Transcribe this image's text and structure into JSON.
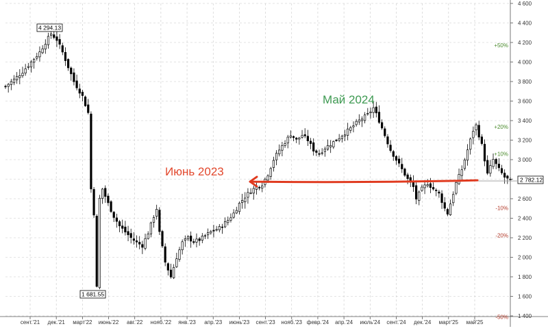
{
  "chart_data": {
    "type": "candlestick",
    "title": "",
    "xlabel": "",
    "ylabel": "",
    "ylim": [
      1400,
      4600
    ],
    "y_ticks": [
      1400,
      1600,
      1800,
      2000,
      2200,
      2400,
      2600,
      2800,
      3000,
      3200,
      3400,
      3600,
      3800,
      4000,
      4200,
      4400,
      4600
    ],
    "y_tick_labels": [
      "1 400",
      "1 600",
      "1 800",
      "2 000",
      "2 200",
      "2 400",
      "2 600",
      "2 800",
      "3 000",
      "3 200",
      "3 400",
      "3 600",
      "3 800",
      "4 000",
      "4 200",
      "4 400",
      "4 600"
    ],
    "x_tick_labels": [
      "сент.'21",
      "дек.'21",
      "март'22",
      "июнь'22",
      "авг.'22",
      "нояб.'22",
      "янв.'23",
      "апр.'23",
      "июнь'23",
      "сент.'23",
      "нояб.'23",
      "февр.'24",
      "апр.'24",
      "июль'24",
      "сент.'24",
      "дек.'24",
      "март'25",
      "май'25"
    ],
    "grid": true,
    "price_path": [
      [
        0,
        3750
      ],
      [
        3,
        3820
      ],
      [
        6,
        3900
      ],
      [
        9,
        4000
      ],
      [
        12,
        4100
      ],
      [
        14,
        4200
      ],
      [
        16,
        4290
      ],
      [
        18,
        4230
      ],
      [
        20,
        4100
      ],
      [
        22,
        3950
      ],
      [
        24,
        3800
      ],
      [
        27,
        3650
      ],
      [
        29,
        3480
      ],
      [
        30,
        2700
      ],
      [
        31,
        2450
      ],
      [
        32,
        1690
      ],
      [
        33,
        2600
      ],
      [
        34,
        2700
      ],
      [
        36,
        2550
      ],
      [
        38,
        2420
      ],
      [
        40,
        2320
      ],
      [
        42,
        2260
      ],
      [
        44,
        2200
      ],
      [
        46,
        2150
      ],
      [
        48,
        2120
      ],
      [
        50,
        2250
      ],
      [
        52,
        2420
      ],
      [
        53,
        2500
      ],
      [
        54,
        2250
      ],
      [
        56,
        1950
      ],
      [
        58,
        1800
      ],
      [
        60,
        2000
      ],
      [
        62,
        2150
      ],
      [
        64,
        2200
      ],
      [
        66,
        2160
      ],
      [
        68,
        2180
      ],
      [
        70,
        2220
      ],
      [
        72,
        2260
      ],
      [
        75,
        2300
      ],
      [
        78,
        2380
      ],
      [
        80,
        2450
      ],
      [
        82,
        2550
      ],
      [
        84,
        2620
      ],
      [
        86,
        2680
      ],
      [
        88,
        2720
      ],
      [
        90,
        2750
      ],
      [
        92,
        2850
      ],
      [
        94,
        3000
      ],
      [
        96,
        3100
      ],
      [
        98,
        3180
      ],
      [
        100,
        3260
      ],
      [
        102,
        3200
      ],
      [
        104,
        3250
      ],
      [
        106,
        3200
      ],
      [
        108,
        3100
      ],
      [
        110,
        3060
      ],
      [
        112,
        3120
      ],
      [
        115,
        3180
      ],
      [
        118,
        3250
      ],
      [
        121,
        3320
      ],
      [
        124,
        3400
      ],
      [
        127,
        3460
      ],
      [
        129,
        3530
      ],
      [
        131,
        3400
      ],
      [
        133,
        3250
      ],
      [
        135,
        3100
      ],
      [
        137,
        3000
      ],
      [
        139,
        2900
      ],
      [
        141,
        2800
      ],
      [
        143,
        2720
      ],
      [
        144,
        2600
      ],
      [
        146,
        2700
      ],
      [
        148,
        2760
      ],
      [
        150,
        2700
      ],
      [
        152,
        2650
      ],
      [
        154,
        2500
      ],
      [
        155,
        2450
      ],
      [
        156,
        2550
      ],
      [
        158,
        2760
      ],
      [
        160,
        2900
      ],
      [
        162,
        3100
      ],
      [
        164,
        3300
      ],
      [
        165,
        3350
      ],
      [
        167,
        3150
      ],
      [
        169,
        2850
      ],
      [
        171,
        3000
      ],
      [
        173,
        2900
      ],
      [
        175,
        2820
      ],
      [
        177,
        2782
      ]
    ],
    "labels": {
      "high_label": "4 294.13",
      "low_label": "1 681.55",
      "last_price_label": "2 782.12"
    },
    "percent_levels": [
      {
        "label": "+50%",
        "value": 4173,
        "color": "#4a8a2c"
      },
      {
        "label": "+20%",
        "value": 3338,
        "color": "#4a8a2c"
      },
      {
        "label": "+10%",
        "value": 3060,
        "color": "#4a8a2c"
      },
      {
        "label": "-10%",
        "value": 2504,
        "color": "#b23a2a"
      },
      {
        "label": "-20%",
        "value": 2226,
        "color": "#b23a2a"
      },
      {
        "label": "-50%",
        "value": 1391,
        "color": "#b23a2a"
      }
    ],
    "annotations": [
      {
        "text": "Июнь 2023",
        "color": "#e2482d"
      },
      {
        "text": "Май 2024",
        "color": "#3e9a52"
      }
    ],
    "arrow_level": 2782,
    "colors": {
      "candle": "#000000",
      "grid": "#c8c8c8",
      "axis": "#555555",
      "arrow": "#e03a1f",
      "last_price_line": "#999999"
    }
  }
}
